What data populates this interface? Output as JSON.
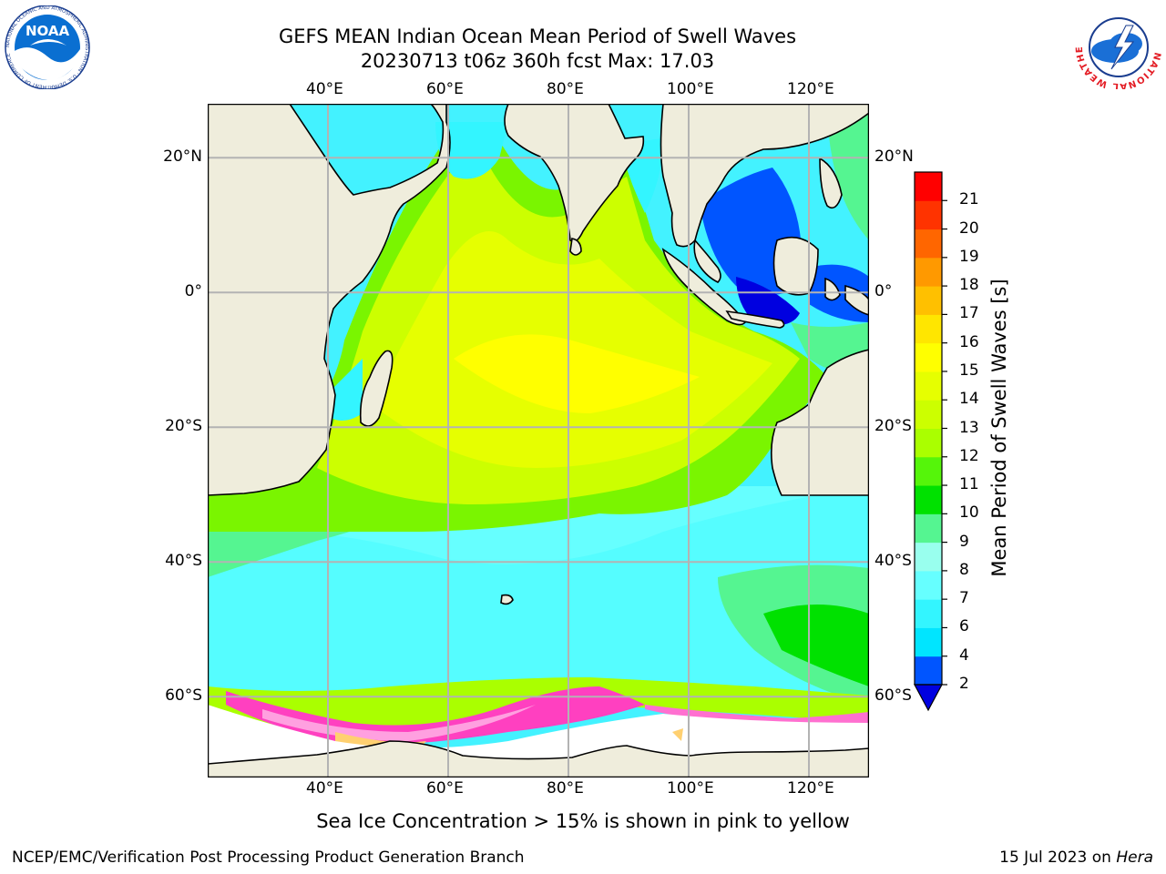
{
  "title": {
    "line1": "GEFS MEAN Indian Ocean Mean Period of Swell Waves",
    "line2": "20230713 t06z 360h fcst   Max: 17.03"
  },
  "map": {
    "lon_range": [
      20,
      130
    ],
    "lat_range": [
      -72,
      28
    ],
    "grid_lons": [
      40,
      60,
      80,
      100,
      120
    ],
    "grid_lats": [
      20,
      0,
      -20,
      -40,
      -60
    ],
    "lon_labels": [
      "40°E",
      "60°E",
      "80°E",
      "100°E",
      "120°E"
    ],
    "lat_labels": [
      "20°N",
      "0°",
      "20°S",
      "40°S",
      "60°S"
    ],
    "land_color": "#efeddc",
    "grid_color": "#b3b3b3"
  },
  "colorbar": {
    "title": "Mean Period of Swell Waves [s]",
    "levels": [
      "2",
      "4",
      "6",
      "7",
      "8",
      "9",
      "10",
      "11",
      "12",
      "13",
      "14",
      "15",
      "16",
      "17",
      "18",
      "19",
      "20",
      "21"
    ],
    "colors": [
      "#0055ff",
      "#00e5ff",
      "#33f5ff",
      "#66ffff",
      "#99ffee",
      "#55f591",
      "#00e100",
      "#55f50a",
      "#aaff00",
      "#ccff00",
      "#e6ff00",
      "#ffff00",
      "#ffe600",
      "#ffc000",
      "#ff9900",
      "#ff6600",
      "#ff3300",
      "#ff0000"
    ],
    "extend_color": "#0000e0"
  },
  "sea_ice_note": "Sea Ice Concentration > 15% is shown in pink to yellow",
  "footer": {
    "left": "NCEP/EMC/Verification Post Processing Product Generation Branch",
    "right_date": "15 Jul 2023 on ",
    "right_machine": "Hera"
  },
  "logos": {
    "noaa": "NOAA",
    "noaa_ring": "NATIONAL OCEANIC AND ATMOSPHERIC ADMINISTRATION · U.S. DEPARTMENT OF COMMERCE",
    "nws_ring": "NATIONAL WEATHER SERVICE"
  }
}
